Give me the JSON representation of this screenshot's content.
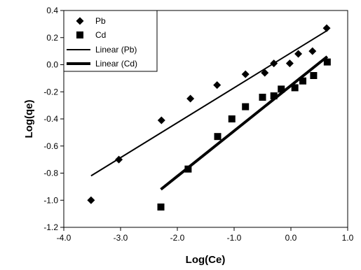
{
  "chart_data": {
    "type": "scatter",
    "title": "",
    "xlabel": "Log(Ce)",
    "ylabel": "Log(qe)",
    "xlim": [
      -4.0,
      1.0
    ],
    "ylim": [
      -1.2,
      0.4
    ],
    "x_ticks": [
      -4.0,
      -3.0,
      -2.0,
      -1.0,
      0.0,
      1.0
    ],
    "x_tick_labels": [
      "-4.0",
      "-3.0",
      "-2.0",
      "-1.0",
      "0.0",
      "1.0"
    ],
    "y_ticks": [
      0.4,
      0.2,
      0.0,
      -0.2,
      -0.4,
      -0.6,
      -0.8,
      -1.0,
      -1.2
    ],
    "y_tick_labels": [
      "0.4",
      "0.2",
      "0.0",
      "-0.2",
      "-0.4",
      "-0.6",
      "-0.8",
      "-1.0",
      "-1.2"
    ],
    "grid": false,
    "legend_position": "top-left",
    "series": [
      {
        "name": "Pb",
        "marker": "diamond",
        "color": "#000000",
        "x": [
          -3.52,
          -3.03,
          -2.28,
          -1.77,
          -1.3,
          -0.8,
          -0.46,
          -0.3,
          -0.02,
          0.13,
          0.38,
          0.63
        ],
        "y": [
          -1.0,
          -0.7,
          -0.41,
          -0.25,
          -0.15,
          -0.07,
          -0.06,
          0.01,
          0.01,
          0.08,
          0.1,
          0.27
        ]
      },
      {
        "name": "Cd",
        "marker": "square",
        "color": "#000000",
        "x": [
          -2.29,
          -1.81,
          -1.29,
          -1.04,
          -0.8,
          -0.5,
          -0.3,
          -0.17,
          0.07,
          0.21,
          0.4,
          0.64
        ],
        "y": [
          -1.05,
          -0.77,
          -0.53,
          -0.4,
          -0.31,
          -0.24,
          -0.23,
          -0.18,
          -0.17,
          -0.12,
          -0.08,
          0.02
        ]
      },
      {
        "name": "Linear (Pb)",
        "type": "line",
        "color": "#000000",
        "x": [
          -3.52,
          0.63
        ],
        "y": [
          -0.82,
          0.25
        ]
      },
      {
        "name": "Linear (Cd)",
        "type": "line",
        "color": "#000000",
        "x": [
          -2.29,
          0.64
        ],
        "y": [
          -0.92,
          0.06
        ]
      }
    ]
  }
}
